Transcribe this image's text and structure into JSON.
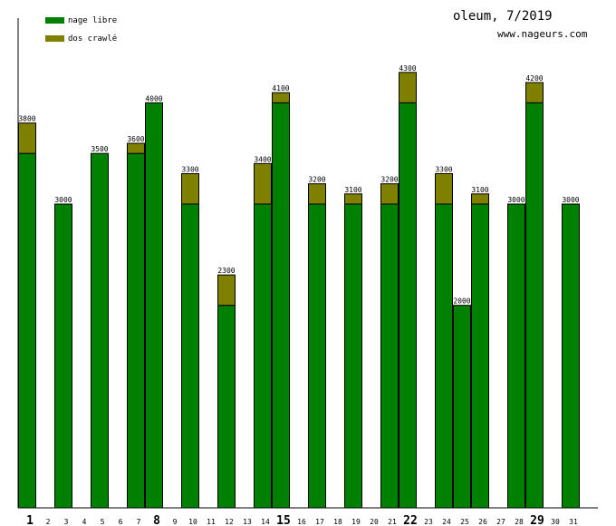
{
  "chart_data": {
    "type": "bar",
    "stacked": true,
    "title": "oleum, 7/2019",
    "subtitle": "www.nageurs.com",
    "legend_position": "top-left",
    "ylim": [
      0,
      4830
    ],
    "categories": [
      "1",
      "2",
      "3",
      "4",
      "5",
      "6",
      "7",
      "8",
      "9",
      "10",
      "11",
      "12",
      "13",
      "14",
      "15",
      "16",
      "17",
      "18",
      "19",
      "20",
      "21",
      "22",
      "23",
      "24",
      "25",
      "26",
      "27",
      "28",
      "29",
      "30",
      "31"
    ],
    "bold_categories": [
      "1",
      "8",
      "15",
      "22",
      "29"
    ],
    "series": [
      {
        "name": "nage libre",
        "color": "#008000",
        "values": [
          3500,
          0,
          3000,
          0,
          3500,
          0,
          3500,
          4000,
          0,
          3000,
          0,
          2000,
          0,
          3000,
          4000,
          0,
          3000,
          0,
          3000,
          0,
          3000,
          4000,
          0,
          3000,
          2000,
          3000,
          0,
          3000,
          4000,
          0,
          3000
        ]
      },
      {
        "name": "dos crawlé",
        "color": "#808000",
        "values": [
          300,
          0,
          0,
          0,
          0,
          0,
          100,
          0,
          0,
          300,
          0,
          300,
          0,
          400,
          100,
          0,
          200,
          0,
          100,
          0,
          200,
          300,
          0,
          300,
          0,
          100,
          0,
          0,
          200,
          0,
          0
        ]
      }
    ],
    "totals": [
      3800,
      0,
      3000,
      0,
      3500,
      0,
      3600,
      4000,
      0,
      3300,
      0,
      2300,
      0,
      3400,
      4100,
      0,
      3200,
      0,
      3100,
      0,
      3200,
      4300,
      0,
      3300,
      2000,
      3100,
      0,
      3000,
      4200,
      0,
      3000
    ]
  }
}
